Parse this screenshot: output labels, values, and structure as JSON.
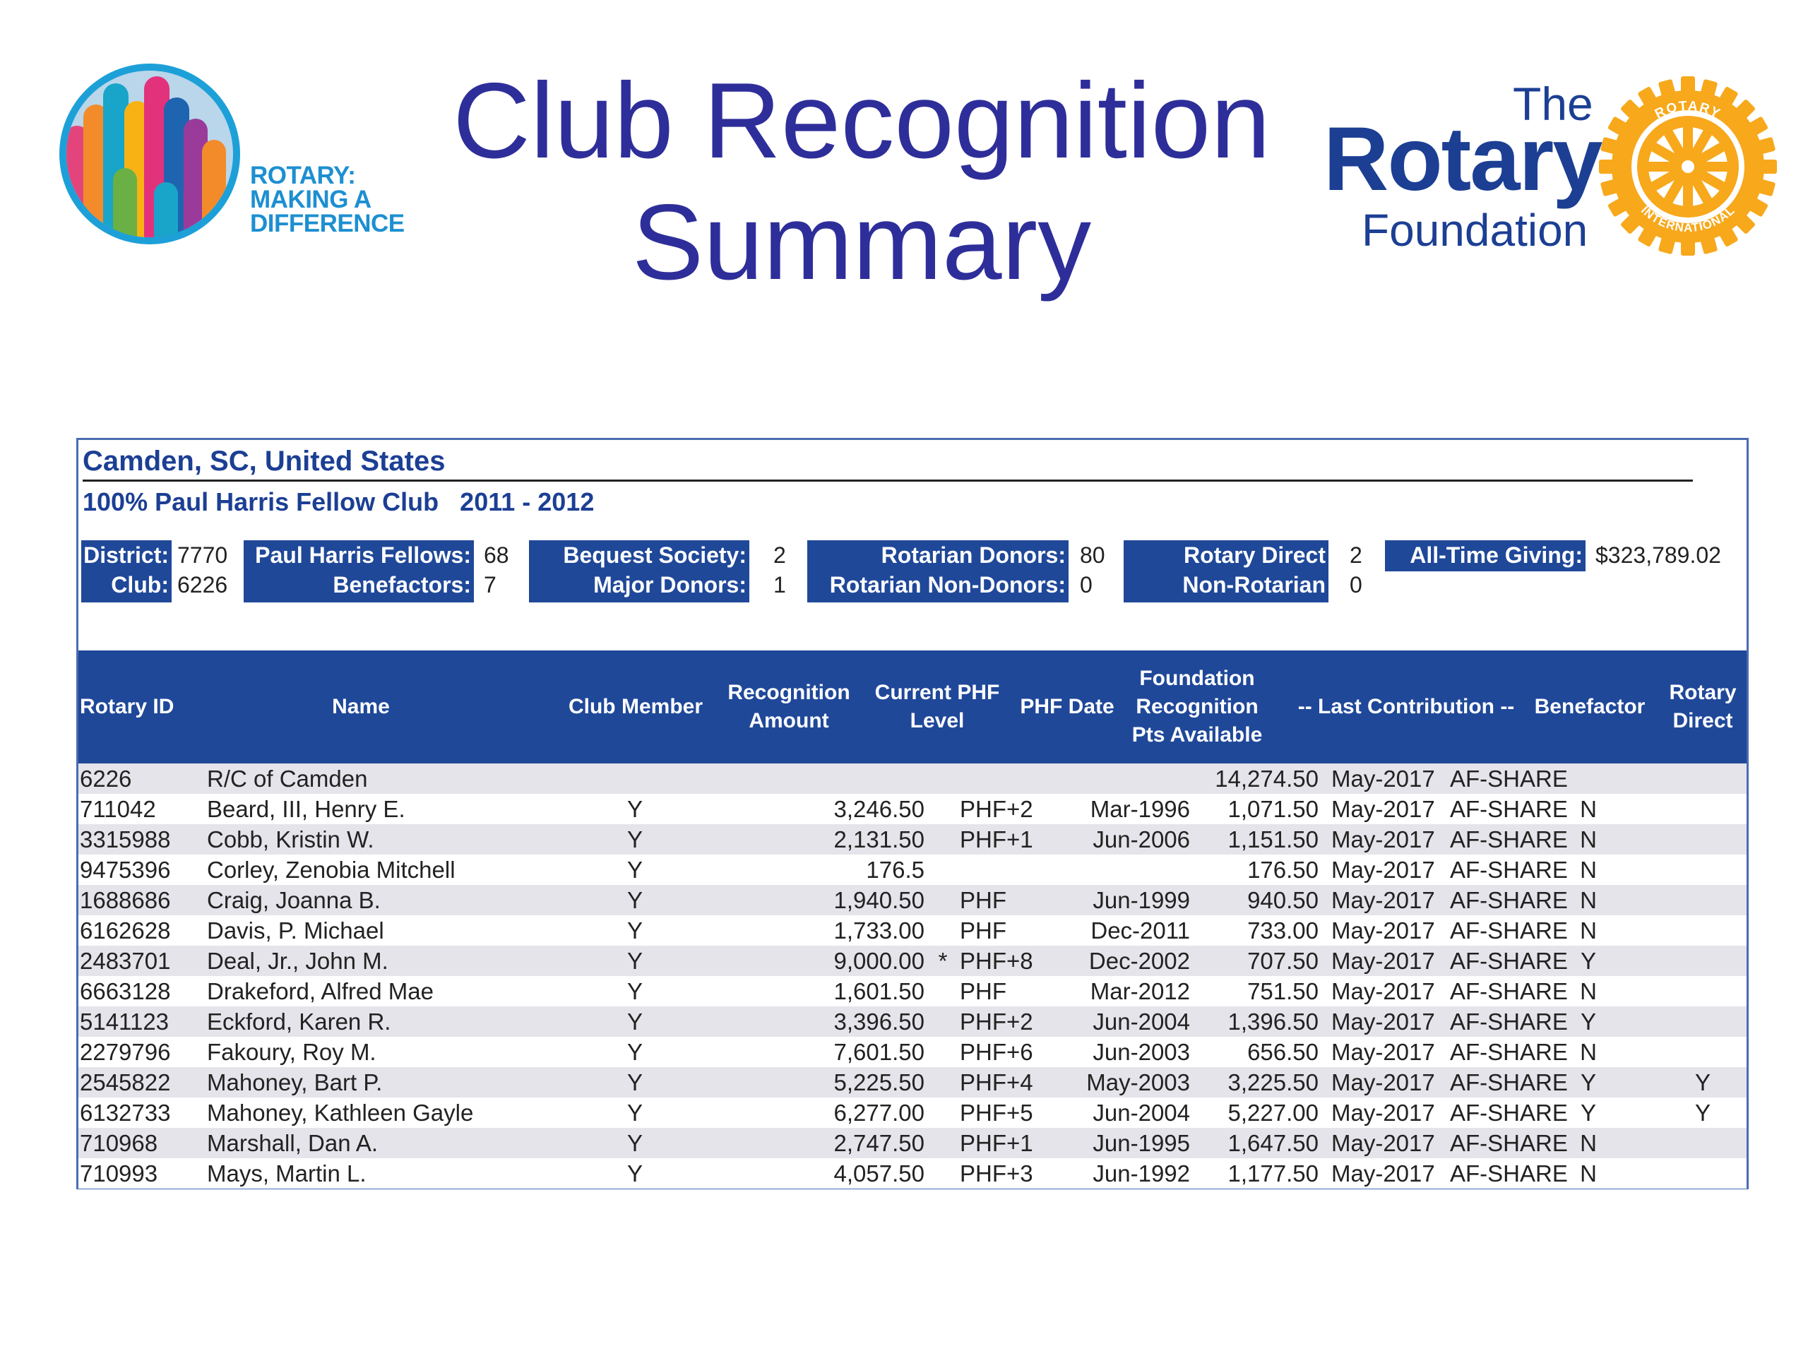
{
  "title": {
    "line1": "Club Recognition",
    "line2": "Summary"
  },
  "logo_left": {
    "line1": "ROTARY:",
    "line2": "MAKING A",
    "line3": "DIFFERENCE"
  },
  "logo_right": {
    "the": "The",
    "rotary": "Rotary",
    "foundation": "Foundation",
    "wheel_top": "ROTARY",
    "wheel_bottom": "INTERNATIONAL"
  },
  "report": {
    "club_name": "Camden, SC, United States",
    "phf_club": "100% Paul Harris Fellow Club",
    "year": "2011 - 2012",
    "stats": [
      {
        "label1": "District:",
        "val1": "7770",
        "label2": "Club:",
        "val2": "6226"
      },
      {
        "label1": "Paul Harris Fellows:",
        "val1": "68",
        "label2": "Benefactors:",
        "val2": "7"
      },
      {
        "label1": "Bequest Society:",
        "val1": "2",
        "label2": "Major Donors:",
        "val2": "1"
      },
      {
        "label1": "Rotarian Donors:",
        "val1": "80",
        "label2": "Rotarian Non-Donors:",
        "val2": "0"
      },
      {
        "label1": "Rotary Direct",
        "val1": "2",
        "label2": "Non-Rotarian",
        "val2": "0"
      },
      {
        "label1": "All-Time Giving:",
        "val1": "$323,789.02"
      }
    ],
    "columns": {
      "rotary_id": "Rotary ID",
      "name": "Name",
      "club_member": "Club Member",
      "recognition_amount": "Recognition Amount",
      "current_phf_level": "Current PHF Level",
      "phf_date": "PHF Date",
      "foundation_pts": "Foundation Recognition Pts Available",
      "last_contribution": "-- Last Contribution --",
      "benefactor": "Benefactor",
      "rotary_direct": "Rotary Direct"
    },
    "rows": [
      {
        "id": "6226",
        "name": "R/C of Camden",
        "club": "",
        "amount": "",
        "star": "",
        "level": "",
        "date": "",
        "pts": "14,274.50",
        "last_date": "May-2017",
        "last_type": "AF-SHARE",
        "benefactor": "",
        "rotary_direct": ""
      },
      {
        "id": "711042",
        "name": "Beard, III, Henry E.",
        "club": "Y",
        "amount": "3,246.50",
        "star": "",
        "level": "PHF+2",
        "date": "Mar-1996",
        "pts": "1,071.50",
        "last_date": "May-2017",
        "last_type": "AF-SHARE",
        "benefactor": "N",
        "rotary_direct": ""
      },
      {
        "id": "3315988",
        "name": "Cobb, Kristin W.",
        "club": "Y",
        "amount": "2,131.50",
        "star": "",
        "level": "PHF+1",
        "date": "Jun-2006",
        "pts": "1,151.50",
        "last_date": "May-2017",
        "last_type": "AF-SHARE",
        "benefactor": "N",
        "rotary_direct": ""
      },
      {
        "id": "9475396",
        "name": "Corley, Zenobia Mitchell",
        "club": "Y",
        "amount": "176.5",
        "star": "",
        "level": "",
        "date": "",
        "pts": "176.50",
        "last_date": "May-2017",
        "last_type": "AF-SHARE",
        "benefactor": "N",
        "rotary_direct": ""
      },
      {
        "id": "1688686",
        "name": "Craig, Joanna B.",
        "club": "Y",
        "amount": "1,940.50",
        "star": "",
        "level": "PHF",
        "date": "Jun-1999",
        "pts": "940.50",
        "last_date": "May-2017",
        "last_type": "AF-SHARE",
        "benefactor": "N",
        "rotary_direct": ""
      },
      {
        "id": "6162628",
        "name": "Davis, P. Michael",
        "club": "Y",
        "amount": "1,733.00",
        "star": "",
        "level": "PHF",
        "date": "Dec-2011",
        "pts": "733.00",
        "last_date": "May-2017",
        "last_type": "AF-SHARE",
        "benefactor": "N",
        "rotary_direct": ""
      },
      {
        "id": "2483701",
        "name": "Deal, Jr., John M.",
        "club": "Y",
        "amount": "9,000.00",
        "star": "*",
        "level": "PHF+8",
        "date": "Dec-2002",
        "pts": "707.50",
        "last_date": "May-2017",
        "last_type": "AF-SHARE",
        "benefactor": "Y",
        "rotary_direct": ""
      },
      {
        "id": "6663128",
        "name": "Drakeford, Alfred Mae",
        "club": "Y",
        "amount": "1,601.50",
        "star": "",
        "level": "PHF",
        "date": "Mar-2012",
        "pts": "751.50",
        "last_date": "May-2017",
        "last_type": "AF-SHARE",
        "benefactor": "N",
        "rotary_direct": ""
      },
      {
        "id": "5141123",
        "name": "Eckford, Karen R.",
        "club": "Y",
        "amount": "3,396.50",
        "star": "",
        "level": "PHF+2",
        "date": "Jun-2004",
        "pts": "1,396.50",
        "last_date": "May-2017",
        "last_type": "AF-SHARE",
        "benefactor": "Y",
        "rotary_direct": ""
      },
      {
        "id": "2279796",
        "name": "Fakoury, Roy M.",
        "club": "Y",
        "amount": "7,601.50",
        "star": "",
        "level": "PHF+6",
        "date": "Jun-2003",
        "pts": "656.50",
        "last_date": "May-2017",
        "last_type": "AF-SHARE",
        "benefactor": "N",
        "rotary_direct": ""
      },
      {
        "id": "2545822",
        "name": "Mahoney, Bart P.",
        "club": "Y",
        "amount": "5,225.50",
        "star": "",
        "level": "PHF+4",
        "date": "May-2003",
        "pts": "3,225.50",
        "last_date": "May-2017",
        "last_type": "AF-SHARE",
        "benefactor": "Y",
        "rotary_direct": "Y"
      },
      {
        "id": "6132733",
        "name": "Mahoney, Kathleen Gayle",
        "club": "Y",
        "amount": "6,277.00",
        "star": "",
        "level": "PHF+5",
        "date": "Jun-2004",
        "pts": "5,227.00",
        "last_date": "May-2017",
        "last_type": "AF-SHARE",
        "benefactor": "Y",
        "rotary_direct": "Y"
      },
      {
        "id": "710968",
        "name": "Marshall, Dan A.",
        "club": "Y",
        "amount": "2,747.50",
        "star": "",
        "level": "PHF+1",
        "date": "Jun-1995",
        "pts": "1,647.50",
        "last_date": "May-2017",
        "last_type": "AF-SHARE",
        "benefactor": "N",
        "rotary_direct": ""
      },
      {
        "id": "710993",
        "name": "Mays, Martin L.",
        "club": "Y",
        "amount": "4,057.50",
        "star": "",
        "level": "PHF+3",
        "date": "Jun-1992",
        "pts": "1,177.50",
        "last_date": "May-2017",
        "last_type": "AF-SHARE",
        "benefactor": "N",
        "rotary_direct": ""
      }
    ]
  }
}
